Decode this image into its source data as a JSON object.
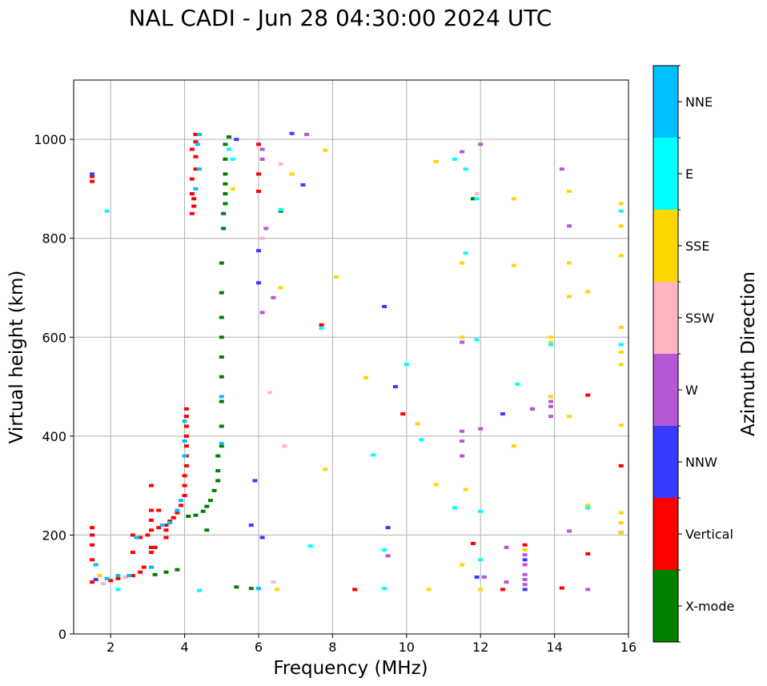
{
  "chart_data": {
    "type": "scatter",
    "title": "NAL CADI - Jun 28 04:30:00 2024 UTC",
    "xlabel": "Frequency (MHz)",
    "ylabel": "Virtual height (km)",
    "xlim": [
      1,
      16
    ],
    "ylim": [
      0,
      1120
    ],
    "xticks": [
      2,
      4,
      6,
      8,
      10,
      12,
      14,
      16
    ],
    "yticks": [
      0,
      200,
      400,
      600,
      800,
      1000
    ],
    "grid": true,
    "colorbar": {
      "title": "Azimuth Direction",
      "categories": [
        {
          "label": "X-mode",
          "color": "#008000"
        },
        {
          "label": "Vertical",
          "color": "#ff0000"
        },
        {
          "label": "NNW",
          "color": "#3a3aff"
        },
        {
          "label": "W",
          "color": "#b658d6"
        },
        {
          "label": "SSW",
          "color": "#ffb6c1"
        },
        {
          "label": "SSE",
          "color": "#ffd700"
        },
        {
          "label": "E",
          "color": "#00ffff"
        },
        {
          "label": "NNE",
          "color": "#00bfff"
        }
      ]
    },
    "series": [
      {
        "name": "Vertical",
        "points": [
          [
            1.5,
            105
          ],
          [
            1.5,
            150
          ],
          [
            1.5,
            180
          ],
          [
            1.5,
            200
          ],
          [
            1.5,
            215
          ],
          [
            1.5,
            915
          ],
          [
            1.5,
            925
          ],
          [
            1.8,
            102
          ],
          [
            2.0,
            108
          ],
          [
            2.2,
            112
          ],
          [
            2.4,
            115
          ],
          [
            2.6,
            118
          ],
          [
            2.8,
            125
          ],
          [
            2.9,
            135
          ],
          [
            2.6,
            165
          ],
          [
            2.6,
            200
          ],
          [
            2.8,
            195
          ],
          [
            3.0,
            200
          ],
          [
            3.1,
            210
          ],
          [
            3.1,
            230
          ],
          [
            3.1,
            250
          ],
          [
            3.1,
            300
          ],
          [
            3.1,
            165
          ],
          [
            3.1,
            175
          ],
          [
            3.3,
            215
          ],
          [
            3.5,
            220
          ],
          [
            3.6,
            228
          ],
          [
            3.7,
            235
          ],
          [
            3.8,
            245
          ],
          [
            3.9,
            260
          ],
          [
            4.0,
            280
          ],
          [
            4.0,
            300
          ],
          [
            4.0,
            320
          ],
          [
            4.05,
            340
          ],
          [
            4.05,
            360
          ],
          [
            4.05,
            380
          ],
          [
            4.05,
            400
          ],
          [
            4.05,
            420
          ],
          [
            4.05,
            440
          ],
          [
            4.05,
            455
          ],
          [
            3.3,
            250
          ],
          [
            3.5,
            210
          ],
          [
            3.5,
            195
          ],
          [
            3.2,
            175
          ],
          [
            4.2,
            850
          ],
          [
            4.25,
            865
          ],
          [
            4.25,
            880
          ],
          [
            4.2,
            890
          ],
          [
            4.2,
            920
          ],
          [
            4.3,
            940
          ],
          [
            4.3,
            965
          ],
          [
            4.2,
            980
          ],
          [
            4.3,
            995
          ],
          [
            4.3,
            1010
          ],
          [
            6.0,
            990
          ],
          [
            6.0,
            930
          ],
          [
            6.0,
            895
          ],
          [
            7.7,
            625
          ],
          [
            9.9,
            445
          ],
          [
            12.6,
            90
          ],
          [
            14.2,
            93
          ],
          [
            14.9,
            483
          ],
          [
            14.9,
            162
          ],
          [
            15.8,
            340
          ],
          [
            15.8,
            205
          ],
          [
            13.2,
            180
          ],
          [
            11.8,
            183
          ],
          [
            8.6,
            90
          ]
        ]
      },
      {
        "name": "X-mode",
        "points": [
          [
            3.2,
            120
          ],
          [
            3.5,
            125
          ],
          [
            3.8,
            130
          ],
          [
            4.1,
            238
          ],
          [
            4.3,
            240
          ],
          [
            4.5,
            248
          ],
          [
            4.6,
            258
          ],
          [
            4.7,
            270
          ],
          [
            4.8,
            290
          ],
          [
            4.9,
            310
          ],
          [
            4.9,
            330
          ],
          [
            4.9,
            360
          ],
          [
            5.0,
            380
          ],
          [
            5.0,
            420
          ],
          [
            5.0,
            470
          ],
          [
            5.0,
            520
          ],
          [
            5.0,
            560
          ],
          [
            5.0,
            600
          ],
          [
            5.0,
            640
          ],
          [
            5.0,
            690
          ],
          [
            5.0,
            750
          ],
          [
            5.05,
            820
          ],
          [
            5.05,
            850
          ],
          [
            5.1,
            870
          ],
          [
            5.1,
            890
          ],
          [
            5.1,
            910
          ],
          [
            5.1,
            930
          ],
          [
            5.1,
            960
          ],
          [
            5.1,
            990
          ],
          [
            5.2,
            1005
          ],
          [
            4.6,
            210
          ],
          [
            5.4,
            95
          ],
          [
            5.8,
            92
          ],
          [
            6.6,
            855
          ],
          [
            11.8,
            880
          ]
        ]
      },
      {
        "name": "NNW",
        "points": [
          [
            1.5,
            930
          ],
          [
            1.6,
            110
          ],
          [
            5.8,
            220
          ],
          [
            5.9,
            310
          ],
          [
            6.1,
            195
          ],
          [
            6.0,
            775
          ],
          [
            6.0,
            710
          ],
          [
            9.4,
            662
          ],
          [
            9.5,
            215
          ],
          [
            9.7,
            500
          ],
          [
            11.9,
            115
          ],
          [
            12.1,
            115
          ],
          [
            12.6,
            445
          ],
          [
            13.2,
            90
          ],
          [
            13.2,
            150
          ],
          [
            13.4,
            455
          ],
          [
            6.9,
            1012
          ],
          [
            5.4,
            1000
          ],
          [
            7.2,
            908
          ]
        ]
      },
      {
        "name": "W",
        "points": [
          [
            6.1,
            980
          ],
          [
            6.1,
            960
          ],
          [
            6.2,
            820
          ],
          [
            6.1,
            650
          ],
          [
            6.4,
            680
          ],
          [
            7.3,
            1010
          ],
          [
            11.5,
            360
          ],
          [
            11.5,
            390
          ],
          [
            11.5,
            410
          ],
          [
            11.5,
            590
          ],
          [
            11.5,
            975
          ],
          [
            12.0,
            990
          ],
          [
            12.0,
            415
          ],
          [
            12.1,
            115
          ],
          [
            12.7,
            175
          ],
          [
            12.7,
            105
          ],
          [
            13.2,
            100
          ],
          [
            13.2,
            110
          ],
          [
            13.2,
            120
          ],
          [
            13.2,
            140
          ],
          [
            13.2,
            160
          ],
          [
            13.4,
            455
          ],
          [
            13.9,
            440
          ],
          [
            13.9,
            460
          ],
          [
            13.9,
            470
          ],
          [
            14.2,
            940
          ],
          [
            14.4,
            825
          ],
          [
            14.4,
            208
          ],
          [
            14.9,
            90
          ],
          [
            9.5,
            158
          ]
        ]
      },
      {
        "name": "SSW",
        "points": [
          [
            1.8,
            102
          ],
          [
            2.4,
            115
          ],
          [
            6.4,
            105
          ],
          [
            6.6,
            950
          ],
          [
            6.3,
            488
          ],
          [
            6.7,
            380
          ],
          [
            11.9,
            890
          ],
          [
            6.1,
            800
          ]
        ]
      },
      {
        "name": "SSE",
        "points": [
          [
            1.7,
            118
          ],
          [
            5.3,
            900
          ],
          [
            6.6,
            700
          ],
          [
            6.9,
            930
          ],
          [
            7.8,
            978
          ],
          [
            7.8,
            333
          ],
          [
            8.1,
            722
          ],
          [
            8.9,
            518
          ],
          [
            10.3,
            425
          ],
          [
            10.8,
            955
          ],
          [
            10.8,
            302
          ],
          [
            11.5,
            750
          ],
          [
            11.5,
            600
          ],
          [
            11.6,
            292
          ],
          [
            11.5,
            140
          ],
          [
            12.0,
            90
          ],
          [
            12.9,
            880
          ],
          [
            12.9,
            745
          ],
          [
            12.9,
            380
          ],
          [
            13.2,
            170
          ],
          [
            13.9,
            590
          ],
          [
            13.9,
            600
          ],
          [
            13.9,
            480
          ],
          [
            14.4,
            895
          ],
          [
            14.4,
            750
          ],
          [
            14.4,
            682
          ],
          [
            14.4,
            440
          ],
          [
            14.9,
            692
          ],
          [
            14.9,
            260
          ],
          [
            15.8,
            870
          ],
          [
            15.8,
            825
          ],
          [
            15.8,
            765
          ],
          [
            15.8,
            620
          ],
          [
            15.8,
            570
          ],
          [
            15.8,
            545
          ],
          [
            15.8,
            422
          ],
          [
            15.8,
            245
          ],
          [
            15.8,
            225
          ],
          [
            15.8,
            205
          ],
          [
            6.5,
            90
          ],
          [
            10.6,
            90
          ]
        ]
      },
      {
        "name": "E",
        "points": [
          [
            1.9,
            855
          ],
          [
            2.2,
            90
          ],
          [
            4.4,
            88
          ],
          [
            5.2,
            980
          ],
          [
            5.3,
            960
          ],
          [
            6.6,
            858
          ],
          [
            7.7,
            618
          ],
          [
            7.4,
            178
          ],
          [
            9.1,
            362
          ],
          [
            9.4,
            92
          ],
          [
            9.4,
            170
          ],
          [
            10.0,
            545
          ],
          [
            10.4,
            393
          ],
          [
            11.3,
            255
          ],
          [
            11.3,
            960
          ],
          [
            11.6,
            940
          ],
          [
            11.6,
            770
          ],
          [
            11.9,
            595
          ],
          [
            11.9,
            880
          ],
          [
            12.0,
            248
          ],
          [
            12.0,
            150
          ],
          [
            13.9,
            585
          ],
          [
            13.0,
            505
          ],
          [
            14.9,
            255
          ],
          [
            15.8,
            855
          ],
          [
            15.8,
            585
          ]
        ]
      },
      {
        "name": "NNE",
        "points": [
          [
            1.6,
            140
          ],
          [
            1.9,
            112
          ],
          [
            2.2,
            118
          ],
          [
            2.5,
            118
          ],
          [
            3.1,
            135
          ],
          [
            2.7,
            195
          ],
          [
            3.4,
            220
          ],
          [
            3.6,
            225
          ],
          [
            3.8,
            250
          ],
          [
            3.9,
            270
          ],
          [
            4.0,
            360
          ],
          [
            4.0,
            390
          ],
          [
            4.0,
            430
          ],
          [
            4.35,
            990
          ],
          [
            4.4,
            940
          ],
          [
            4.4,
            1010
          ],
          [
            5.0,
            385
          ],
          [
            5.0,
            480
          ],
          [
            4.3,
            900
          ],
          [
            6.0,
            92
          ]
        ]
      }
    ]
  }
}
